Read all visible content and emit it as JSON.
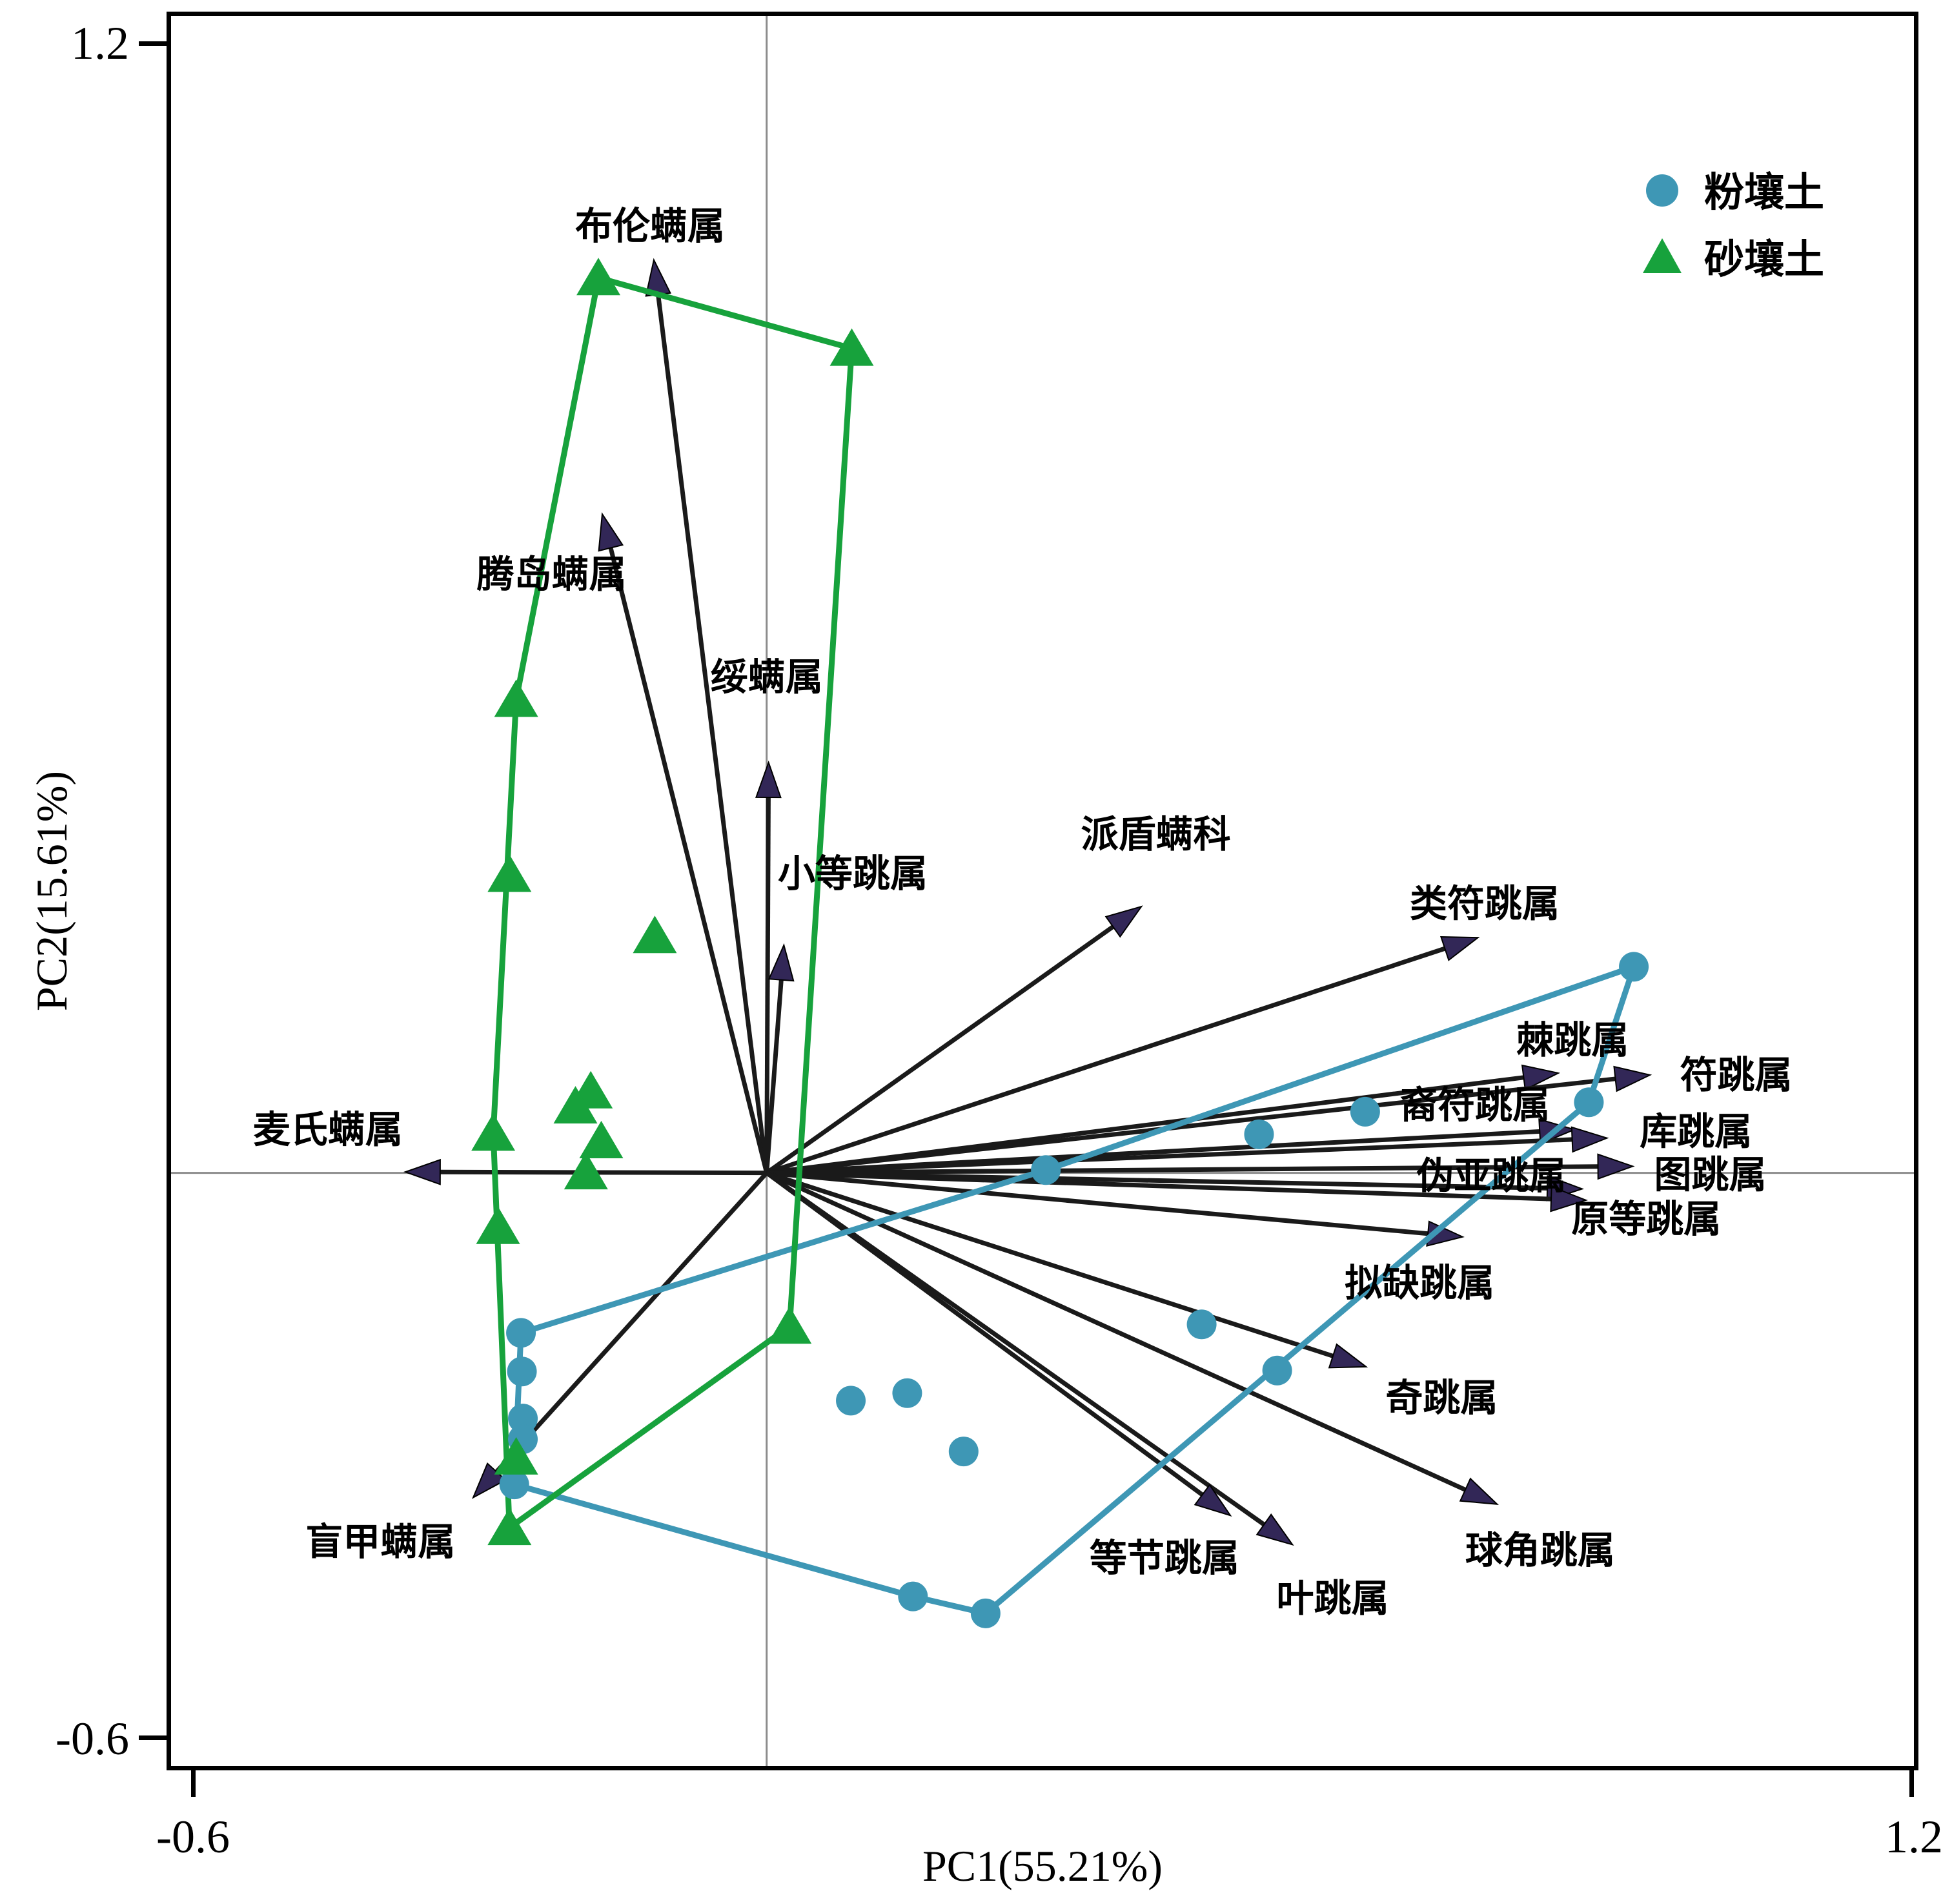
{
  "figure_type": "PCA biplot of soil mite and springtail communities",
  "axes": {
    "x_title": "PC1(55.21%)",
    "y_title": "PC2(15.61%)",
    "x_tick_labels": {
      "min": "-0.6",
      "max": "1.2"
    },
    "y_tick_labels": {
      "min": "-0.6",
      "max": "1.2"
    }
  },
  "legend": {
    "items": [
      {
        "label": "粉壤土",
        "marker": "circle",
        "color": "#3e97b5"
      },
      {
        "label": "砂壤土",
        "marker": "triangle",
        "color": "#17a23c"
      }
    ]
  },
  "chart_data": {
    "type": "scatter",
    "subtype": "pca-biplot-with-loading-vectors-and-convex-hulls",
    "title": "",
    "xlabel": "PC1(55.21%)",
    "ylabel": "PC2(15.61%)",
    "xlim": [
      -0.623,
      1.2
    ],
    "ylim": [
      -0.63,
      1.229
    ],
    "xticks": [
      -0.6,
      1.2
    ],
    "yticks": [
      -0.6,
      1.2
    ],
    "grid": "origin-crosshair-only",
    "legend_position": "inside-top-right",
    "colors": {
      "silty_loam": "#3e97b5",
      "sandy_loam": "#17a23c",
      "vector_shaft": "#1a1a1a",
      "vector_head": "#322757",
      "gridline": "#8c8c8c",
      "frame": "#000000",
      "text": "#000000"
    },
    "series": [
      {
        "name": "粉壤土",
        "marker": "circle",
        "color": "#3e97b5",
        "points": [
          [
            0.907,
            0.219
          ],
          [
            0.86,
            0.075
          ],
          [
            0.626,
            0.065
          ],
          [
            0.515,
            0.041
          ],
          [
            0.292,
            0.003
          ],
          [
            0.455,
            -0.161
          ],
          [
            0.534,
            -0.21
          ],
          [
            0.088,
            -0.242
          ],
          [
            0.147,
            -0.234
          ],
          [
            0.206,
            -0.296
          ],
          [
            0.153,
            -0.45
          ],
          [
            0.229,
            -0.468
          ],
          [
            -0.257,
            -0.17
          ],
          [
            -0.256,
            -0.211
          ],
          [
            -0.255,
            -0.261
          ],
          [
            -0.255,
            -0.283
          ],
          [
            -0.264,
            -0.331
          ]
        ],
        "hull": [
          [
            -0.257,
            -0.17
          ],
          [
            0.292,
            0.003
          ],
          [
            0.907,
            0.219
          ],
          [
            0.86,
            0.075
          ],
          [
            0.229,
            -0.468
          ],
          [
            0.153,
            -0.45
          ],
          [
            -0.264,
            -0.331
          ]
        ]
      },
      {
        "name": "砂壤土",
        "marker": "triangle",
        "color": "#17a23c",
        "points": [
          [
            -0.176,
            0.951
          ],
          [
            0.089,
            0.876
          ],
          [
            -0.262,
            0.503
          ],
          [
            -0.269,
            0.317
          ],
          [
            -0.117,
            0.252
          ],
          [
            -0.286,
            0.042
          ],
          [
            -0.281,
            -0.057
          ],
          [
            -0.184,
            0.087
          ],
          [
            -0.2,
            0.071
          ],
          [
            -0.173,
            0.034
          ],
          [
            -0.189,
            0.001
          ],
          [
            -0.262,
            -0.302
          ],
          [
            -0.269,
            -0.377
          ],
          [
            0.024,
            -0.163
          ]
        ],
        "hull": [
          [
            -0.176,
            0.951
          ],
          [
            0.089,
            0.876
          ],
          [
            0.024,
            -0.163
          ],
          [
            -0.269,
            -0.377
          ],
          [
            -0.286,
            0.042
          ],
          [
            -0.262,
            0.503
          ]
        ]
      }
    ],
    "vectors": [
      {
        "label": "布伦螨属",
        "tip": [
          -0.118,
          0.97
        ],
        "label_pos": [
          -0.122,
          1.006
        ]
      },
      {
        "label": "腾岛螨属",
        "tip": [
          -0.172,
          0.7
        ],
        "label_pos": [
          -0.225,
          0.636
        ]
      },
      {
        "label": "绥螨属",
        "tip": [
          0.002,
          0.436
        ],
        "label_pos": [
          0.0,
          0.527
        ]
      },
      {
        "label": "小等跳属",
        "tip": [
          0.018,
          0.242
        ],
        "label_pos": [
          0.09,
          0.318
        ]
      },
      {
        "label": "派盾螨科",
        "tip": [
          0.392,
          0.283
        ],
        "label_pos": [
          0.407,
          0.36
        ]
      },
      {
        "label": "类符跳属",
        "tip": [
          0.744,
          0.25
        ],
        "label_pos": [
          0.751,
          0.286
        ]
      },
      {
        "label": "麦氏螨属",
        "tip": [
          -0.378,
          0.001
        ],
        "label_pos": [
          -0.459,
          0.046
        ]
      },
      {
        "label": "棘跳属",
        "tip": [
          0.828,
          0.106
        ],
        "label_pos": [
          0.843,
          0.141
        ]
      },
      {
        "label": "符跳属",
        "tip": [
          0.924,
          0.104
        ],
        "label_pos": [
          1.014,
          0.104
        ]
      },
      {
        "label": "裔符跳属",
        "tip": [
          0.845,
          0.046
        ],
        "label_pos": [
          0.741,
          0.072
        ]
      },
      {
        "label": "库跳属",
        "tip": [
          0.879,
          0.037
        ],
        "label_pos": [
          0.972,
          0.044
        ]
      },
      {
        "label": "伪亚跳属",
        "tip": [
          0.853,
          -0.017
        ],
        "label_pos": [
          0.758,
          -0.003
        ]
      },
      {
        "label": "图跳属",
        "tip": [
          0.906,
          0.007
        ],
        "label_pos": [
          0.987,
          -0.002
        ]
      },
      {
        "label": "原等跳属",
        "tip": [
          0.857,
          -0.029
        ],
        "label_pos": [
          0.92,
          -0.049
        ]
      },
      {
        "label": "拟缺跳属",
        "tip": [
          0.728,
          -0.068
        ],
        "label_pos": [
          0.683,
          -0.117
        ]
      },
      {
        "label": "奇跳属",
        "tip": [
          0.627,
          -0.206
        ],
        "label_pos": [
          0.706,
          -0.239
        ]
      },
      {
        "label": "球角跳属",
        "tip": [
          0.764,
          -0.352
        ],
        "label_pos": [
          0.809,
          -0.401
        ]
      },
      {
        "label": "叶跳属",
        "tip": [
          0.55,
          -0.395
        ],
        "label_pos": [
          0.592,
          -0.452
        ]
      },
      {
        "label": "等节跳属",
        "tip": [
          0.485,
          -0.364
        ],
        "label_pos": [
          0.416,
          -0.409
        ]
      },
      {
        "label": "盲甲螨属",
        "tip": [
          -0.307,
          -0.345
        ],
        "label_pos": [
          -0.404,
          -0.392
        ]
      }
    ]
  }
}
